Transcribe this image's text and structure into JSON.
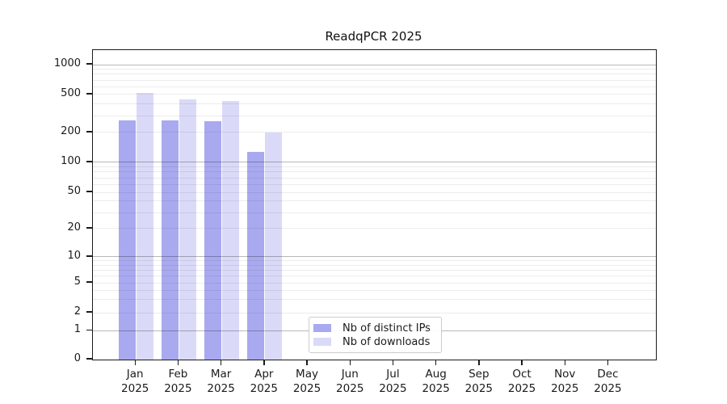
{
  "title": "ReadqPCR 2025",
  "chart_data": {
    "type": "bar",
    "title": "ReadqPCR 2025",
    "categories": [
      "Jan",
      "Feb",
      "Mar",
      "Apr",
      "May",
      "Jun",
      "Jul",
      "Aug",
      "Sep",
      "Oct",
      "Nov",
      "Dec"
    ],
    "year_label": "2025",
    "series": [
      {
        "name": "Nb of distinct IPs",
        "color": "#a9a9f0",
        "values": [
          270,
          268,
          261,
          127,
          0,
          0,
          0,
          0,
          0,
          0,
          0,
          0
        ]
      },
      {
        "name": "Nb of downloads",
        "color": "#dadaf8",
        "values": [
          520,
          447,
          425,
          201,
          0,
          0,
          0,
          0,
          0,
          0,
          0,
          0
        ]
      }
    ],
    "y_ticks": [
      0,
      1,
      2,
      5,
      10,
      20,
      50,
      100,
      200,
      500,
      1000
    ],
    "ylabel": "",
    "xlabel": "",
    "y_scale": "log-like",
    "ylim": [
      0,
      1400
    ],
    "grid": "horizontal major+minor",
    "legend_position": "lower center"
  },
  "colors": {
    "major_gridline": "#b8b8b8",
    "minor_gridline": "#ebebeb",
    "axis": "#1b1b1b",
    "background": "#ffffff"
  }
}
